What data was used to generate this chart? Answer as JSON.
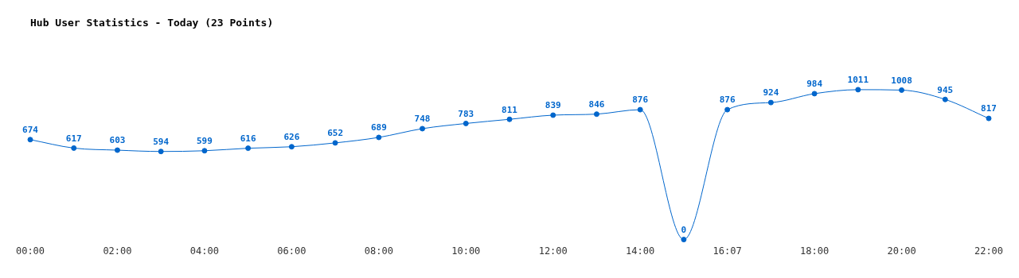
{
  "chart_data": {
    "type": "line",
    "title": "Hub User Statistics - Today (23 Points)",
    "categories": [
      "00:00",
      null,
      "02:00",
      null,
      "04:00",
      null,
      "06:00",
      null,
      "08:00",
      null,
      "10:00",
      null,
      "12:00",
      null,
      "14:00",
      null,
      "16:07",
      null,
      "18:00",
      null,
      "20:00",
      null,
      "22:00"
    ],
    "series": [
      {
        "color": "#0066cc",
        "values": [
          674,
          617,
          603,
          594,
          599,
          616,
          626,
          652,
          689,
          748,
          783,
          811,
          839,
          846,
          876,
          0,
          876,
          924,
          984,
          1011,
          1008,
          945,
          817
        ]
      }
    ],
    "data_labels": true,
    "marker": "circle",
    "grid": false,
    "legend": false
  }
}
